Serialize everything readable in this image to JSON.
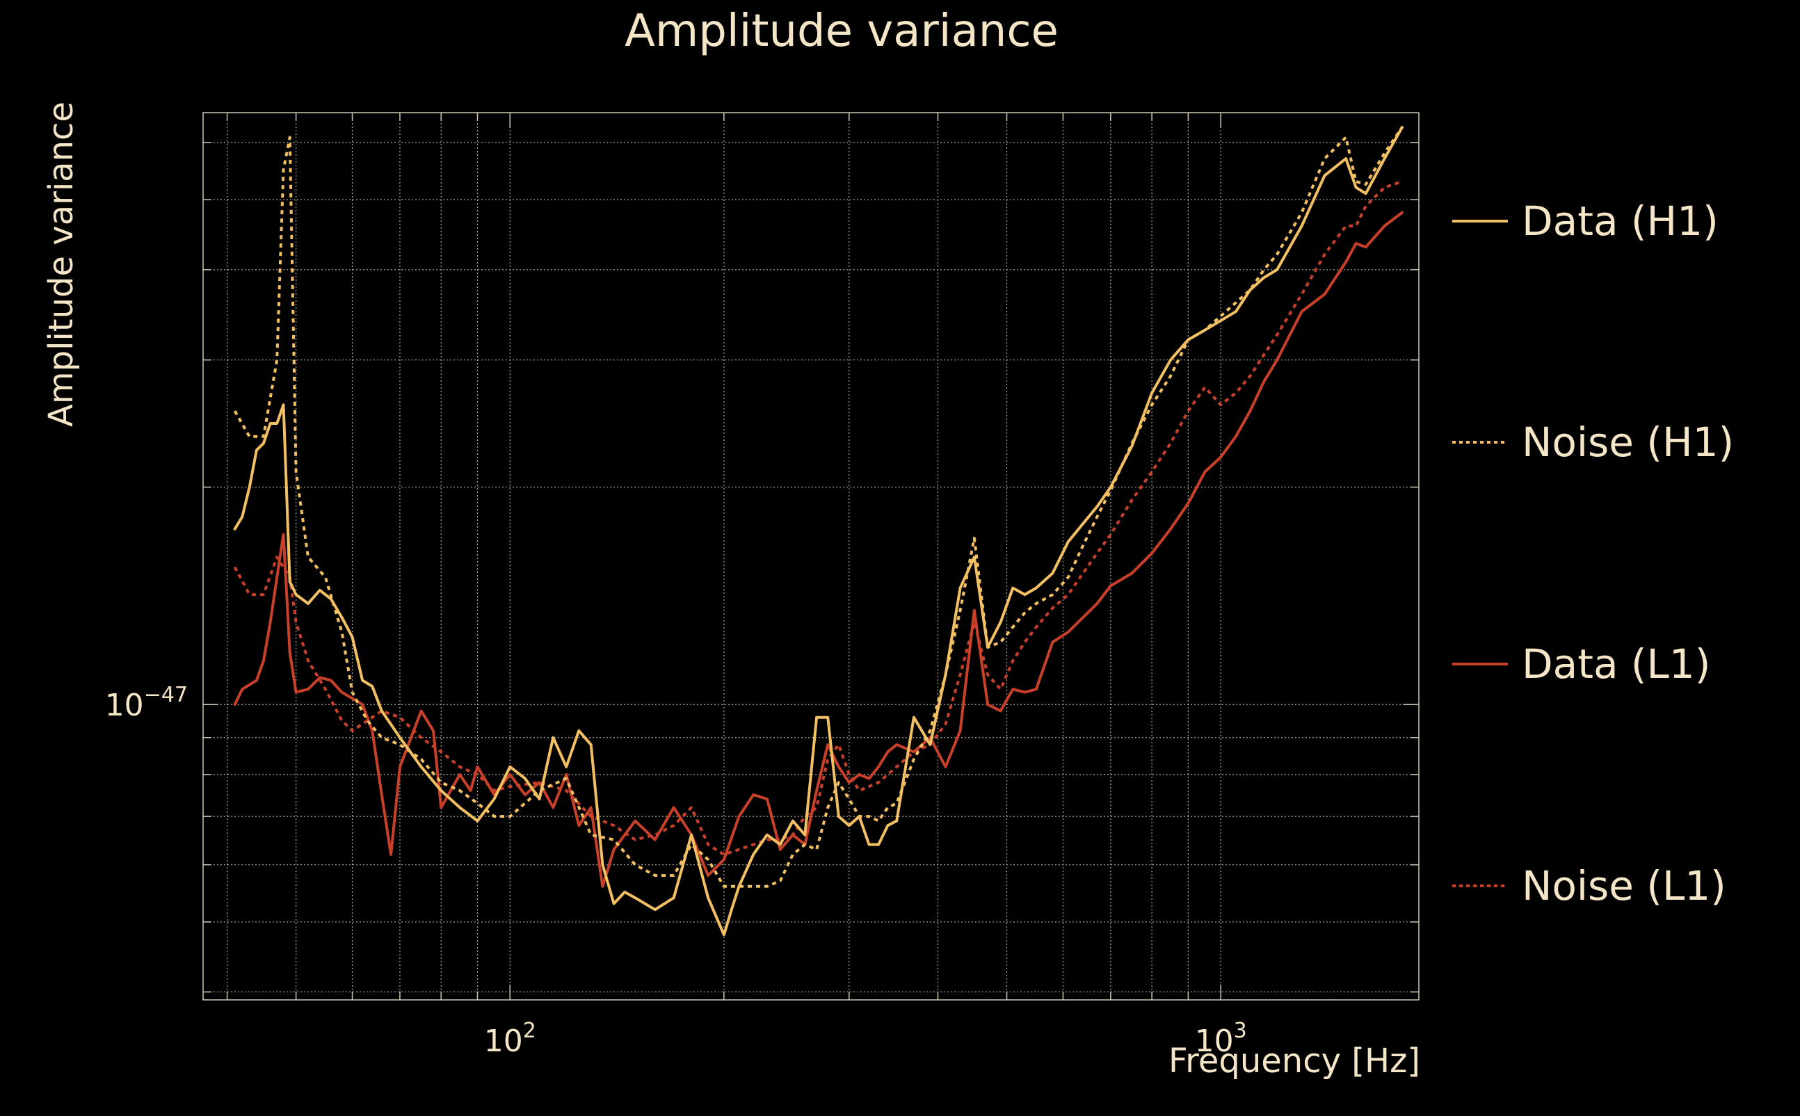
{
  "colors": {
    "background": "#000000",
    "text": "#f5e6c8",
    "grid": "#cfc7b4",
    "data_h1": "#f2c062",
    "noise_h1": "#f2c062",
    "data_l1": "#c8402a",
    "noise_l1": "#c8402a"
  },
  "chart_data": {
    "type": "line",
    "title": "Amplitude variance",
    "xlabel": "Frequency [Hz]",
    "ylabel": "Amplitude variance",
    "xscale": "log",
    "yscale": "log",
    "xlim": [
      37,
      1900
    ],
    "ylim": [
      3.9e-48,
      6.6e-47
    ],
    "grid": true,
    "legend_placement": "right",
    "x_tick_labels": [
      {
        "value": 100,
        "base": "10",
        "exp": "2"
      },
      {
        "value": 1000,
        "base": "10",
        "exp": "3"
      }
    ],
    "y_tick_labels": [
      {
        "value": 1e-47,
        "base": "10",
        "exp": "−47"
      }
    ],
    "series": [
      {
        "name": "Data (H1)",
        "style": "solid",
        "x": [
          41,
          42,
          43,
          44,
          45,
          46,
          47,
          48,
          49,
          50,
          52,
          54,
          56,
          58,
          60,
          62,
          64,
          66,
          70,
          75,
          80,
          85,
          90,
          95,
          100,
          105,
          110,
          115,
          120,
          125,
          130,
          135,
          140,
          145,
          150,
          160,
          170,
          180,
          190,
          200,
          205,
          210,
          220,
          230,
          240,
          250,
          260,
          270,
          280,
          290,
          300,
          310,
          320,
          330,
          340,
          350,
          370,
          390,
          410,
          430,
          450,
          470,
          490,
          510,
          530,
          550,
          580,
          610,
          640,
          670,
          700,
          750,
          800,
          850,
          900,
          950,
          1000,
          1050,
          1100,
          1150,
          1200,
          1300,
          1400,
          1500,
          1550,
          1600,
          1700,
          1800
        ],
        "values": [
          1.75e-47,
          1.82e-47,
          2e-47,
          2.25e-47,
          2.3e-47,
          2.45e-47,
          2.45e-47,
          2.6e-47,
          1.48e-47,
          1.42e-47,
          1.38e-47,
          1.44e-47,
          1.4e-47,
          1.32e-47,
          1.24e-47,
          1.08e-47,
          1.06e-47,
          9.8e-48,
          9e-48,
          8.2e-48,
          7.6e-48,
          7.2e-48,
          6.9e-48,
          7.4e-48,
          8.2e-48,
          7.9e-48,
          7.4e-48,
          9e-48,
          8.2e-48,
          9.2e-48,
          8.8e-48,
          6e-48,
          5.3e-48,
          5.5e-48,
          5.4e-48,
          5.2e-48,
          5.4e-48,
          6.6e-48,
          5.4e-48,
          4.8e-48,
          5.2e-48,
          5.6e-48,
          6.2e-48,
          6.6e-48,
          6.4e-48,
          6.9e-48,
          6.6e-48,
          9.6e-48,
          9.6e-48,
          7e-48,
          6.8e-48,
          7e-48,
          6.4e-48,
          6.4e-48,
          6.8e-48,
          6.9e-48,
          9.6e-48,
          8.8e-48,
          1.1e-47,
          1.45e-47,
          1.6e-47,
          1.2e-47,
          1.3e-47,
          1.45e-47,
          1.42e-47,
          1.45e-47,
          1.52e-47,
          1.68e-47,
          1.78e-47,
          1.88e-47,
          2e-47,
          2.28e-47,
          2.7e-47,
          3e-47,
          3.2e-47,
          3.3e-47,
          3.4e-47,
          3.5e-47,
          3.75e-47,
          3.9e-47,
          4e-47,
          4.6e-47,
          5.4e-47,
          5.7e-47,
          5.2e-47,
          5.1e-47,
          5.7e-47,
          6.3e-47
        ]
      },
      {
        "name": "Noise (H1)",
        "style": "dotted",
        "x": [
          41,
          43,
          45,
          47,
          48,
          49,
          50,
          52,
          55,
          58,
          60,
          63,
          66,
          70,
          75,
          80,
          85,
          90,
          95,
          100,
          110,
          120,
          130,
          140,
          150,
          160,
          170,
          180,
          190,
          200,
          210,
          220,
          230,
          240,
          250,
          260,
          270,
          280,
          290,
          300,
          310,
          320,
          330,
          340,
          350,
          370,
          390,
          410,
          430,
          450,
          470,
          490,
          510,
          530,
          550,
          580,
          610,
          640,
          670,
          700,
          750,
          800,
          850,
          900,
          950,
          1000,
          1050,
          1100,
          1150,
          1200,
          1300,
          1400,
          1500,
          1550,
          1600,
          1700,
          1800
        ],
        "values": [
          2.55e-47,
          2.35e-47,
          2.35e-47,
          3e-47,
          5.5e-47,
          6.1e-47,
          2.1e-47,
          1.6e-47,
          1.5e-47,
          1.26e-47,
          1.04e-47,
          9.5e-48,
          9e-48,
          8.8e-48,
          8.4e-48,
          7.8e-48,
          7.6e-48,
          7.3e-48,
          7e-48,
          7e-48,
          7.6e-48,
          7.9e-48,
          6.6e-48,
          6.5e-48,
          6e-48,
          5.8e-48,
          5.8e-48,
          6.4e-48,
          6.1e-48,
          5.6e-48,
          5.6e-48,
          5.6e-48,
          5.6e-48,
          5.7e-48,
          6.2e-48,
          6.4e-48,
          6.3e-48,
          7.2e-48,
          7.8e-48,
          7.4e-48,
          7e-48,
          7e-48,
          6.9e-48,
          7.2e-48,
          7.3e-48,
          8.4e-48,
          9.2e-48,
          1.1e-47,
          1.35e-47,
          1.7e-47,
          1.2e-47,
          1.22e-47,
          1.28e-47,
          1.34e-47,
          1.38e-47,
          1.42e-47,
          1.5e-47,
          1.66e-47,
          1.82e-47,
          1.98e-47,
          2.3e-47,
          2.6e-47,
          2.85e-47,
          3.2e-47,
          3.3e-47,
          3.45e-47,
          3.6e-47,
          3.75e-47,
          4e-47,
          4.2e-47,
          4.8e-47,
          5.7e-47,
          6.1e-47,
          5.3e-47,
          5.25e-47,
          5.8e-47,
          6.3e-47
        ]
      },
      {
        "name": "Data (L1)",
        "style": "solid",
        "x": [
          41,
          42,
          44,
          45,
          46,
          47,
          48,
          49,
          50,
          52,
          54,
          56,
          58,
          60,
          62,
          64,
          66,
          68,
          70,
          75,
          78,
          80,
          85,
          88,
          90,
          95,
          100,
          105,
          110,
          115,
          120,
          125,
          130,
          135,
          140,
          150,
          160,
          170,
          180,
          190,
          200,
          210,
          220,
          230,
          240,
          250,
          260,
          270,
          280,
          290,
          300,
          310,
          320,
          330,
          340,
          350,
          370,
          390,
          410,
          430,
          450,
          470,
          490,
          510,
          530,
          550,
          580,
          610,
          640,
          670,
          700,
          750,
          800,
          850,
          900,
          950,
          1000,
          1050,
          1100,
          1150,
          1200,
          1300,
          1400,
          1500,
          1550,
          1600,
          1700,
          1800
        ],
        "values": [
          1e-47,
          1.05e-47,
          1.08e-47,
          1.15e-47,
          1.3e-47,
          1.5e-47,
          1.72e-47,
          1.18e-47,
          1.04e-47,
          1.05e-47,
          1.09e-47,
          1.08e-47,
          1.04e-47,
          1.02e-47,
          1e-47,
          9.2e-48,
          7.5e-48,
          6.2e-48,
          8.2e-48,
          9.8e-48,
          9.2e-48,
          7.2e-48,
          8e-48,
          7.6e-48,
          8.2e-48,
          7.5e-48,
          8e-48,
          7.5e-48,
          7.8e-48,
          7.2e-48,
          8e-48,
          6.8e-48,
          7.2e-48,
          5.6e-48,
          6.3e-48,
          6.9e-48,
          6.5e-48,
          7.2e-48,
          6.6e-48,
          5.8e-48,
          6.1e-48,
          7e-48,
          7.5e-48,
          7.4e-48,
          6.3e-48,
          6.6e-48,
          6.4e-48,
          7.6e-48,
          8.8e-48,
          8.2e-48,
          7.8e-48,
          8e-48,
          7.9e-48,
          8.2e-48,
          8.6e-48,
          8.8e-48,
          8.6e-48,
          9e-48,
          8.2e-48,
          9.2e-48,
          1.35e-47,
          1e-47,
          9.8e-48,
          1.05e-47,
          1.04e-47,
          1.05e-47,
          1.22e-47,
          1.26e-47,
          1.32e-47,
          1.38e-47,
          1.46e-47,
          1.52e-47,
          1.62e-47,
          1.75e-47,
          1.9e-47,
          2.1e-47,
          2.2e-47,
          2.35e-47,
          2.55e-47,
          2.8e-47,
          3e-47,
          3.5e-47,
          3.7e-47,
          4.1e-47,
          4.35e-47,
          4.3e-47,
          4.6e-47,
          4.8e-47
        ]
      },
      {
        "name": "Noise (L1)",
        "style": "dotted",
        "x": [
          41,
          43,
          45,
          47,
          49,
          50,
          52,
          55,
          58,
          60,
          63,
          66,
          70,
          75,
          80,
          85,
          90,
          95,
          100,
          110,
          120,
          130,
          140,
          150,
          160,
          170,
          180,
          190,
          200,
          210,
          220,
          230,
          240,
          250,
          260,
          270,
          280,
          290,
          300,
          310,
          320,
          330,
          340,
          350,
          370,
          390,
          410,
          430,
          450,
          470,
          490,
          510,
          530,
          550,
          580,
          610,
          640,
          670,
          700,
          750,
          800,
          850,
          900,
          950,
          1000,
          1050,
          1100,
          1150,
          1200,
          1300,
          1400,
          1500,
          1550,
          1600,
          1700,
          1800
        ],
        "values": [
          1.55e-47,
          1.42e-47,
          1.42e-47,
          1.6e-47,
          1.5e-47,
          1.3e-47,
          1.15e-47,
          1.05e-47,
          9.5e-48,
          9.2e-48,
          9.5e-48,
          9.8e-48,
          9.6e-48,
          9e-48,
          8.6e-48,
          8.2e-48,
          8e-48,
          7.6e-48,
          7.7e-48,
          7.8e-48,
          7.6e-48,
          7e-48,
          6.8e-48,
          6.5e-48,
          6.6e-48,
          6.8e-48,
          7.2e-48,
          6.4e-48,
          6.2e-48,
          6.3e-48,
          6.4e-48,
          6.5e-48,
          6.5e-48,
          6.6e-48,
          7e-48,
          7.2e-48,
          8.4e-48,
          8.8e-48,
          8e-48,
          7.6e-48,
          7.7e-48,
          7.8e-48,
          8e-48,
          8.2e-48,
          8.6e-48,
          8.8e-48,
          9.4e-48,
          1.1e-47,
          1.3e-47,
          1.1e-47,
          1.05e-47,
          1.15e-47,
          1.22e-47,
          1.28e-47,
          1.36e-47,
          1.42e-47,
          1.52e-47,
          1.62e-47,
          1.72e-47,
          1.92e-47,
          2.1e-47,
          2.3e-47,
          2.55e-47,
          2.75e-47,
          2.6e-47,
          2.7e-47,
          2.85e-47,
          3.05e-47,
          3.25e-47,
          3.7e-47,
          4.2e-47,
          4.6e-47,
          4.6e-47,
          4.9e-47,
          5.2e-47,
          5.3e-47
        ]
      }
    ]
  }
}
